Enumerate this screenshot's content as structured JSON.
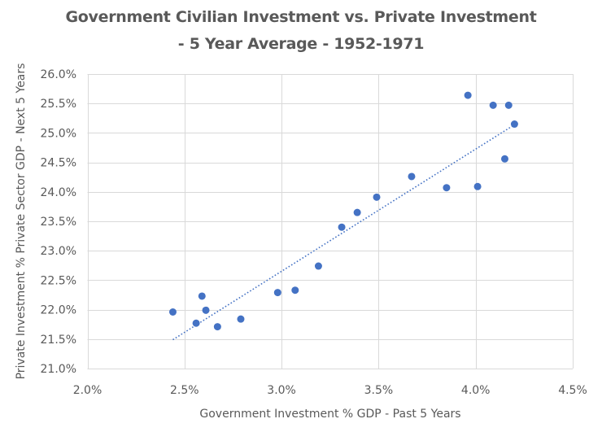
{
  "chart_data": {
    "type": "scatter",
    "title": "Government Civilian Investment vs. Private Investment",
    "subtitle": "- 5 Year Average - 1952-1971",
    "xlabel": "Government Investment % GDP - Past 5 Years",
    "ylabel": "Private Investment % Private Sector GDP - Next 5 Years",
    "xlim": [
      2.0,
      4.5
    ],
    "ylim": [
      21.0,
      26.0
    ],
    "x_ticks": [
      2.0,
      2.5,
      3.0,
      3.5,
      4.0,
      4.5
    ],
    "y_ticks": [
      21.0,
      21.5,
      22.0,
      22.5,
      23.0,
      23.5,
      24.0,
      24.5,
      25.0,
      25.5,
      26.0
    ],
    "x_tick_labels": [
      "2.0%",
      "2.5%",
      "3.0%",
      "3.5%",
      "4.0%",
      "4.5%"
    ],
    "y_tick_labels": [
      "21.0%",
      "21.5%",
      "22.0%",
      "22.5%",
      "23.0%",
      "23.5%",
      "24.0%",
      "24.5%",
      "25.0%",
      "25.5%",
      "26.0%"
    ],
    "grid": true,
    "legend": "none",
    "series": [
      {
        "name": "5 Year Average",
        "color": "#4472C4",
        "x": [
          2.44,
          2.56,
          2.59,
          2.61,
          2.67,
          2.79,
          2.98,
          3.07,
          3.19,
          3.31,
          3.39,
          3.49,
          3.67,
          3.85,
          3.96,
          4.01,
          4.09,
          4.15,
          4.17,
          4.2
        ],
        "y": [
          21.96,
          21.77,
          22.23,
          21.99,
          21.71,
          21.84,
          22.29,
          22.33,
          22.74,
          23.4,
          23.65,
          23.91,
          24.26,
          24.07,
          25.64,
          24.09,
          25.47,
          24.56,
          25.47,
          25.15
        ]
      }
    ],
    "trendline": {
      "type": "linear",
      "style": "dotted",
      "color": "#4472C4",
      "x": [
        2.44,
        4.2
      ],
      "y": [
        21.49,
        25.14
      ]
    }
  },
  "colors": {
    "grid": "#D9D9D9",
    "text": "#595959",
    "marker": "#4472C4"
  }
}
